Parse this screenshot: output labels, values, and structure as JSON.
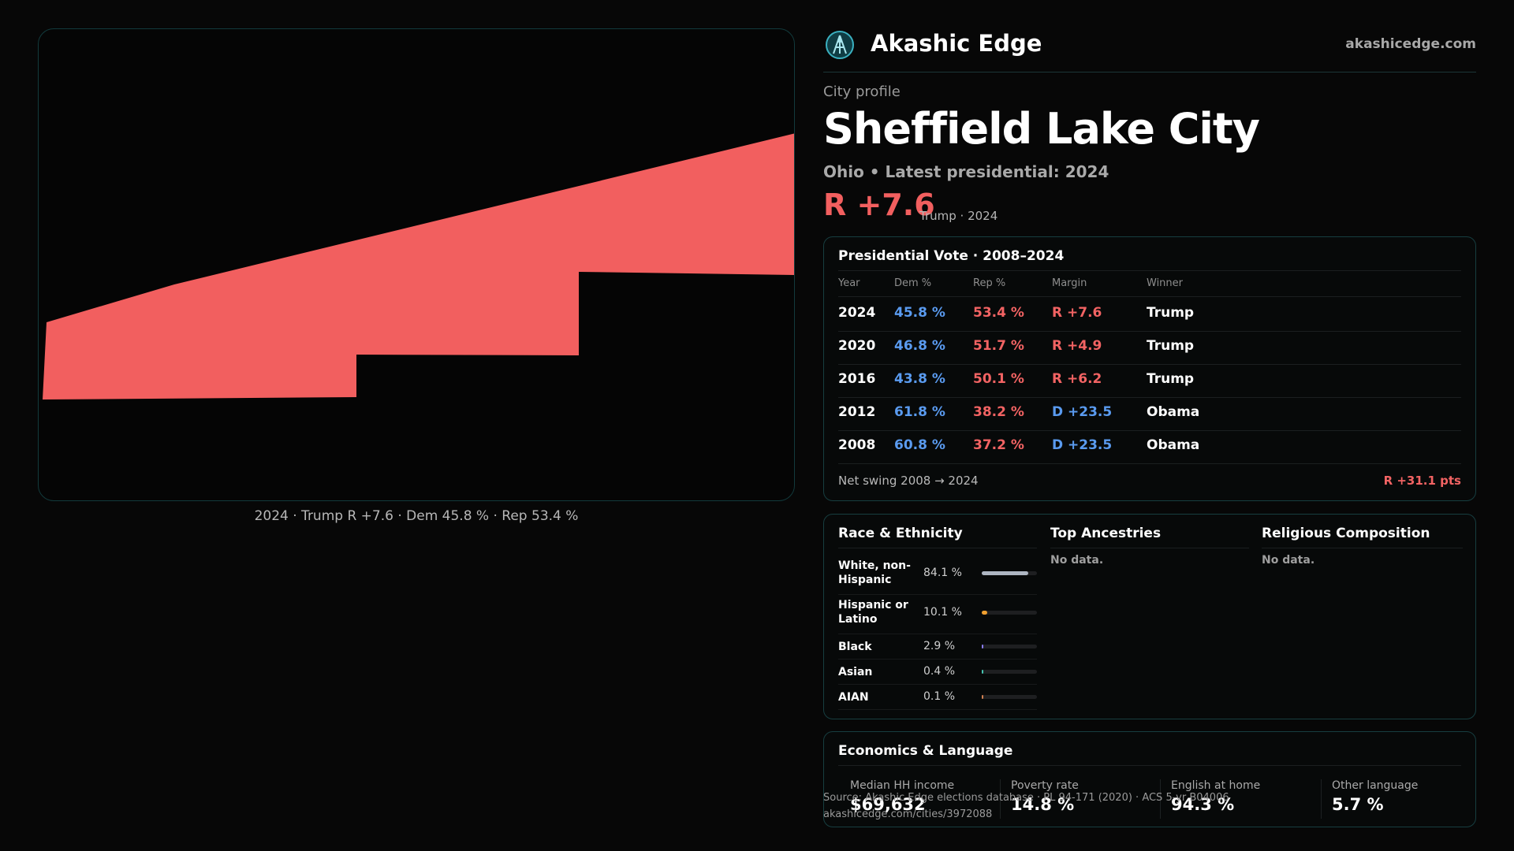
{
  "brand": {
    "name": "Akashic Edge",
    "url": "akashicedge.com",
    "logo_icon": "akashic-edge-logo-icon"
  },
  "profile": {
    "eyebrow": "City profile",
    "city": "Sheffield Lake City",
    "subtitle": "Ohio • Latest presidential: 2024",
    "headline_margin": "R +7.6",
    "headline_note": "Trump · 2024"
  },
  "map": {
    "fill_color": "#f25f5f",
    "caption": "2024 · Trump R +7.6 · Dem 45.8 % · Rep 53.4 %"
  },
  "vote_table": {
    "title": "Presidential Vote · 2008–2024",
    "headers": {
      "year": "Year",
      "dem": "Dem %",
      "rep": "Rep %",
      "margin": "Margin",
      "winner": "Winner"
    },
    "rows": [
      {
        "year": "2024",
        "dem": "45.8 %",
        "rep": "53.4 %",
        "margin": "R +7.6",
        "winner": "Trump",
        "party": "R"
      },
      {
        "year": "2020",
        "dem": "46.8 %",
        "rep": "51.7 %",
        "margin": "R +4.9",
        "winner": "Trump",
        "party": "R"
      },
      {
        "year": "2016",
        "dem": "43.8 %",
        "rep": "50.1 %",
        "margin": "R +6.2",
        "winner": "Trump",
        "party": "R"
      },
      {
        "year": "2012",
        "dem": "61.8 %",
        "rep": "38.2 %",
        "margin": "D +23.5",
        "winner": "Obama",
        "party": "D"
      },
      {
        "year": "2008",
        "dem": "60.8 %",
        "rep": "37.2 %",
        "margin": "D +23.5",
        "winner": "Obama",
        "party": "D"
      }
    ],
    "net_swing_label": "Net swing 2008 → 2024",
    "net_swing_value": "R +31.1 pts"
  },
  "demographics": {
    "race_title": "Race & Ethnicity",
    "race": [
      {
        "label": "White, non-Hispanic",
        "pct": "84.1 %",
        "share": 0.841,
        "color": "#aeb6c2"
      },
      {
        "label": "Hispanic or Latino",
        "pct": "10.1 %",
        "share": 0.101,
        "color": "#f0a030"
      },
      {
        "label": "Black",
        "pct": "2.9 %",
        "share": 0.029,
        "color": "#8a7cf0"
      },
      {
        "label": "Asian",
        "pct": "0.4 %",
        "share": 0.004,
        "color": "#45c4b0"
      },
      {
        "label": "AIAN",
        "pct": "0.1 %",
        "share": 0.001,
        "color": "#d08050"
      }
    ],
    "ancestry_title": "Top Ancestries",
    "ancestry_empty": "No data.",
    "religion_title": "Religious Composition",
    "religion_empty": "No data."
  },
  "economics": {
    "title": "Economics & Language",
    "stats": [
      {
        "label": "Median HH income",
        "value": "$69,632"
      },
      {
        "label": "Poverty rate",
        "value": "14.8 %"
      },
      {
        "label": "English at home",
        "value": "94.3 %"
      },
      {
        "label": "Other language",
        "value": "5.7 %"
      }
    ]
  },
  "footer": {
    "source": "Source: Akashic Edge elections database · PL 94-171 (2020) · ACS 5-yr B04006",
    "url": "akashicedge.com/cities/3972088"
  },
  "colors": {
    "dem": "#5a9bf0",
    "rep": "#f26363",
    "accent": "#173e40"
  }
}
